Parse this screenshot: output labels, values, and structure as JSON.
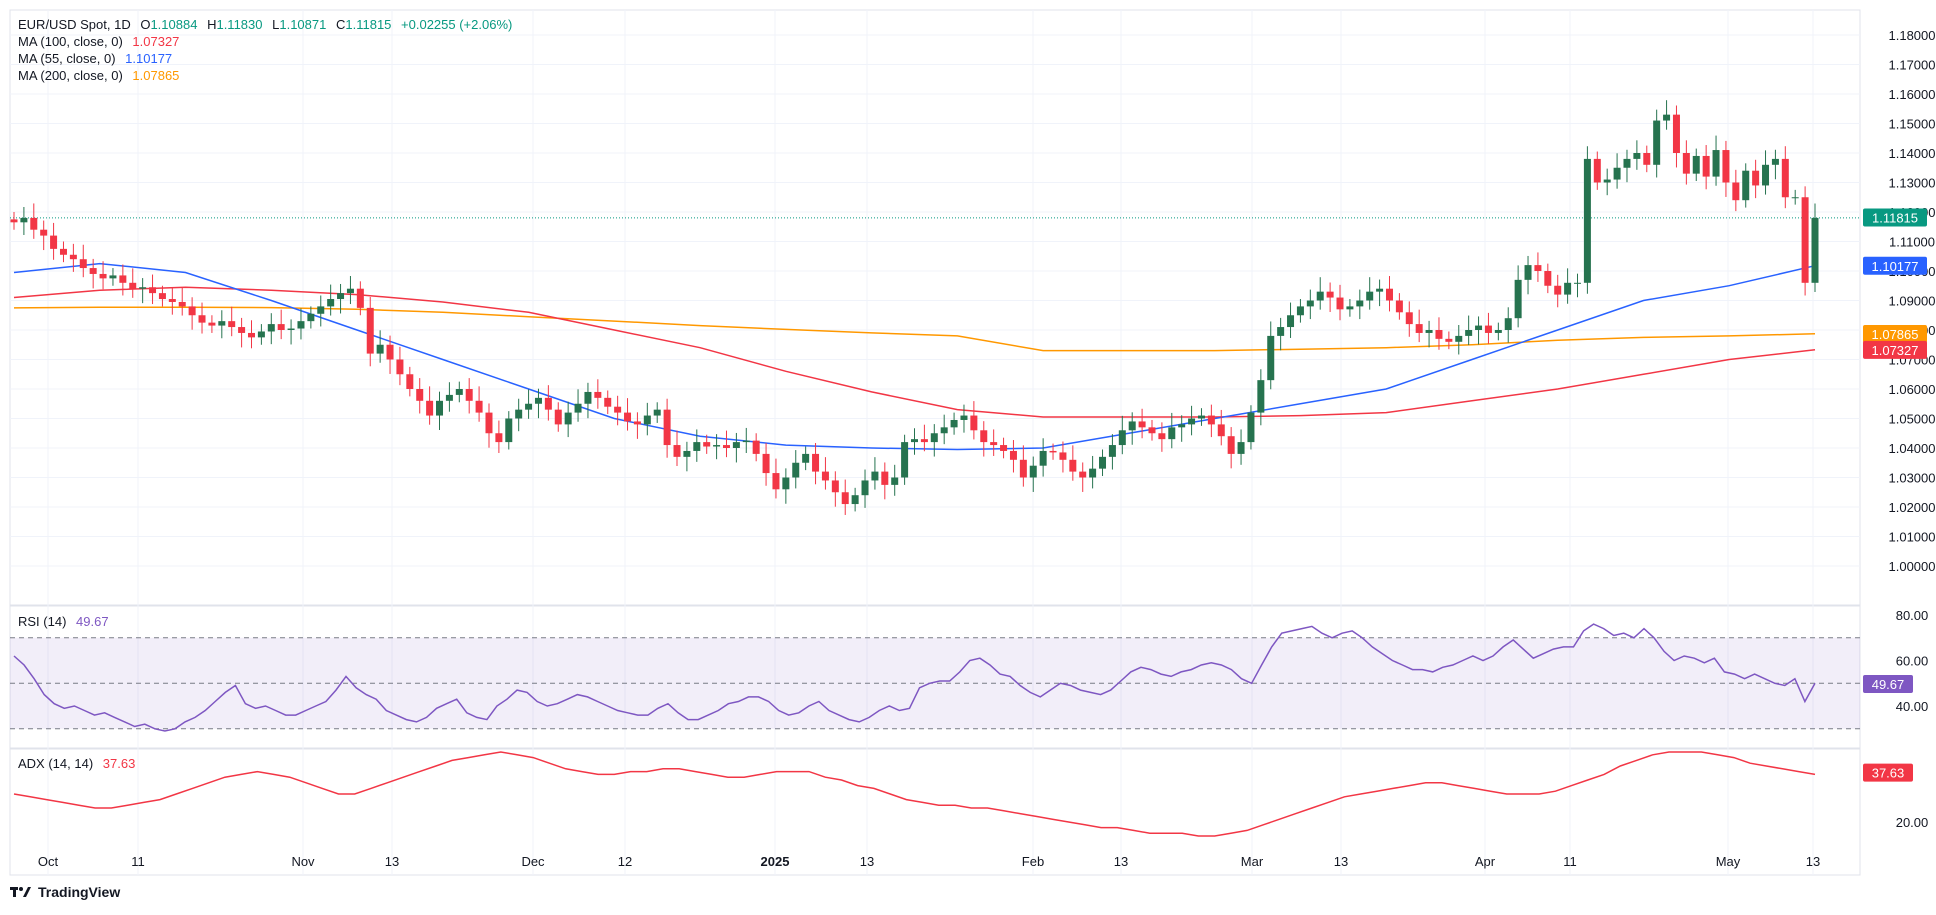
{
  "legend": {
    "symbol": "EUR/USD Spot, 1D",
    "o_label": "O",
    "o": "1.10884",
    "h_label": "H",
    "h": "1.11830",
    "l_label": "L",
    "l": "1.10871",
    "c_label": "C",
    "c": "1.11815",
    "change": "+0.02255 (+2.06%)",
    "ma100_label": "MA (100, close, 0)",
    "ma100_value": "1.07327",
    "ma55_label": "MA (55, close, 0)",
    "ma55_value": "1.10177",
    "ma200_label": "MA (200, close, 0)",
    "ma200_value": "1.07865",
    "rsi_label": "RSI (14)",
    "rsi_value": "49.67",
    "adx_label": "ADX (14, 14)",
    "adx_value": "37.63"
  },
  "colors": {
    "up": "#089981",
    "up_fill": "#26734f",
    "down": "#f23645",
    "ma100": "#f23645",
    "ma55": "#2962ff",
    "ma200": "#ff9800",
    "rsi": "#7e57c2",
    "adx": "#f23645"
  },
  "brand": "TradingView",
  "chart_data": {
    "type": "candlestick",
    "x_ticks": [
      "Oct",
      "11",
      "Nov",
      "13",
      "Dec",
      "12",
      "2025",
      "13",
      "Feb",
      "13",
      "Mar",
      "13",
      "Apr",
      "11",
      "May",
      "13"
    ],
    "price_axis": [
      "1.18000",
      "1.17000",
      "1.16000",
      "1.15000",
      "1.14000",
      "1.13000",
      "1.12000",
      "1.11000",
      "1.10000",
      "1.09000",
      "1.08000",
      "1.07000",
      "1.06000",
      "1.05000",
      "1.04000",
      "1.03000",
      "1.02000",
      "1.01000",
      "1.00000"
    ],
    "price_labels": [
      {
        "text": "1.11815",
        "value": 1.11815,
        "color": "#089981"
      },
      {
        "text": "1.10177",
        "value": 1.10177,
        "color": "#2962ff"
      },
      {
        "text": "1.07865",
        "value": 1.07865,
        "color": "#ff9800"
      },
      {
        "text": "1.07327",
        "value": 1.07327,
        "color": "#f23645"
      }
    ],
    "rsi_axis": [
      "80.00",
      "60.00",
      "40.00"
    ],
    "adx_axis": [
      "20.00"
    ],
    "candles_close": [
      1.1165,
      1.118,
      1.114,
      1.112,
      1.1075,
      1.1055,
      1.104,
      1.101,
      1.099,
      1.0975,
      1.0985,
      1.096,
      1.094,
      1.0945,
      1.0925,
      1.0905,
      1.0895,
      1.088,
      1.085,
      1.0825,
      1.0815,
      1.083,
      1.081,
      1.079,
      1.0775,
      1.0795,
      1.082,
      1.08,
      1.0805,
      1.083,
      1.0855,
      1.088,
      1.0905,
      1.0925,
      1.094,
      1.0875,
      1.072,
      1.075,
      1.07,
      1.065,
      1.06,
      1.056,
      1.051,
      1.056,
      1.058,
      1.06,
      1.056,
      1.052,
      1.045,
      1.042,
      1.05,
      1.053,
      1.055,
      1.057,
      1.053,
      1.048,
      1.052,
      1.055,
      1.059,
      1.057,
      1.054,
      1.052,
      1.049,
      1.048,
      1.051,
      1.053,
      1.041,
      1.037,
      1.039,
      1.042,
      1.0405,
      1.041,
      1.04,
      1.042,
      1.0425,
      1.038,
      1.0315,
      1.026,
      1.03,
      1.035,
      1.038,
      1.032,
      1.029,
      1.025,
      1.021,
      1.024,
      1.029,
      1.032,
      1.0275,
      1.03,
      1.042,
      1.043,
      1.042,
      1.045,
      1.047,
      1.0495,
      1.051,
      1.046,
      1.042,
      1.041,
      1.039,
      1.036,
      1.03,
      1.034,
      1.039,
      1.0385,
      1.036,
      1.032,
      1.03,
      1.033,
      1.037,
      1.041,
      1.046,
      1.049,
      1.047,
      1.045,
      1.043,
      1.047,
      1.048,
      1.05,
      1.051,
      1.048,
      1.044,
      1.038,
      1.042,
      1.052,
      1.063,
      1.078,
      1.081,
      1.085,
      1.088,
      1.09,
      1.093,
      1.091,
      1.087,
      1.088,
      1.09,
      1.093,
      1.094,
      1.09,
      1.086,
      1.082,
      1.079,
      1.08,
      1.077,
      1.076,
      1.078,
      1.08,
      1.0815,
      1.079,
      1.08,
      1.084,
      1.097,
      1.102,
      1.1,
      1.095,
      1.092,
      1.096,
      1.096,
      1.138,
      1.13,
      1.131,
      1.135,
      1.138,
      1.14,
      1.136,
      1.151,
      1.153,
      1.14,
      1.133,
      1.139,
      1.132,
      1.141,
      1.13,
      1.124,
      1.134,
      1.129,
      1.136,
      1.138,
      1.125,
      1.125,
      1.096,
      1.118
    ],
    "rsi_values": [
      62,
      58,
      52,
      45,
      41,
      39,
      40,
      38,
      36,
      37,
      35,
      33,
      31,
      32,
      30,
      29,
      30,
      33,
      35,
      38,
      42,
      46,
      49,
      41,
      39,
      40,
      38,
      36,
      36,
      38,
      40,
      42,
      47,
      53,
      48,
      45,
      43,
      38,
      36,
      34,
      33,
      35,
      39,
      41,
      43,
      37,
      35,
      34,
      40,
      43,
      47,
      46,
      42,
      40,
      41,
      43,
      45,
      44,
      42,
      40,
      38,
      37,
      36,
      36,
      39,
      41,
      37,
      34,
      34,
      36,
      38,
      41,
      42,
      44,
      44,
      42,
      38,
      36,
      37,
      40,
      42,
      38,
      36,
      34,
      33,
      35,
      38,
      40,
      38,
      39,
      48,
      50,
      51,
      51,
      55,
      60,
      61,
      58,
      54,
      53,
      49,
      46,
      44,
      47,
      50,
      49,
      47,
      46,
      45,
      47,
      51,
      55,
      57,
      56,
      54,
      53,
      55,
      56,
      58,
      59,
      58,
      56,
      52,
      50,
      58,
      66,
      72,
      73,
      74,
      75,
      72,
      70,
      72,
      73,
      70,
      66,
      63,
      60,
      58,
      56,
      56,
      55,
      57,
      58,
      60,
      62,
      60,
      62,
      66,
      69,
      65,
      61,
      63,
      65,
      66,
      66,
      73,
      76,
      74,
      71,
      72,
      70,
      74,
      70,
      64,
      60,
      62,
      61,
      59,
      61,
      55,
      54,
      52,
      54,
      52,
      50,
      49,
      52,
      42,
      50
    ],
    "adx_values": [
      30,
      29,
      28,
      27,
      26,
      25,
      25,
      26,
      27,
      28,
      30,
      32,
      34,
      36,
      37,
      38,
      37,
      36,
      34,
      32,
      30,
      30,
      32,
      34,
      36,
      38,
      40,
      42,
      43,
      44,
      45,
      44,
      43,
      41,
      39,
      38,
      37,
      37,
      38,
      38,
      39,
      39,
      38,
      37,
      36,
      36,
      37,
      38,
      38,
      38,
      36,
      35,
      33,
      32,
      30,
      28,
      27,
      26,
      26,
      25,
      25,
      24,
      23,
      22,
      21,
      20,
      19,
      18,
      18,
      17,
      16,
      16,
      16,
      15,
      15,
      16,
      17,
      19,
      21,
      23,
      25,
      27,
      29,
      30,
      31,
      32,
      33,
      34,
      34,
      33,
      32,
      31,
      30,
      30,
      30,
      31,
      33,
      35,
      37,
      40,
      42,
      44,
      45,
      45,
      45,
      44,
      43,
      41,
      40,
      39,
      38,
      37
    ],
    "ma55_series": [
      1.0995,
      1.1025,
      1.0995,
      1.09,
      1.08,
      1.07,
      1.06,
      1.05,
      1.044,
      1.041,
      1.04,
      1.0395,
      1.04,
      1.045,
      1.05,
      1.055,
      1.06,
      1.07,
      1.08,
      1.09,
      1.095,
      1.1018
    ],
    "ma100_series": [
      1.091,
      1.0935,
      1.0945,
      1.0935,
      1.092,
      1.0895,
      1.086,
      1.08,
      1.074,
      1.066,
      1.059,
      1.053,
      1.0505,
      1.0505,
      1.0505,
      1.051,
      1.052,
      1.056,
      1.06,
      1.065,
      1.07,
      1.0733
    ],
    "ma200_series": [
      1.0875,
      1.0877,
      1.0877,
      1.0876,
      1.087,
      1.086,
      1.0845,
      1.083,
      1.0815,
      1.0802,
      1.079,
      1.078,
      1.073,
      1.073,
      1.073,
      1.0735,
      1.074,
      1.075,
      1.0765,
      1.0775,
      1.078,
      1.0787
    ]
  }
}
